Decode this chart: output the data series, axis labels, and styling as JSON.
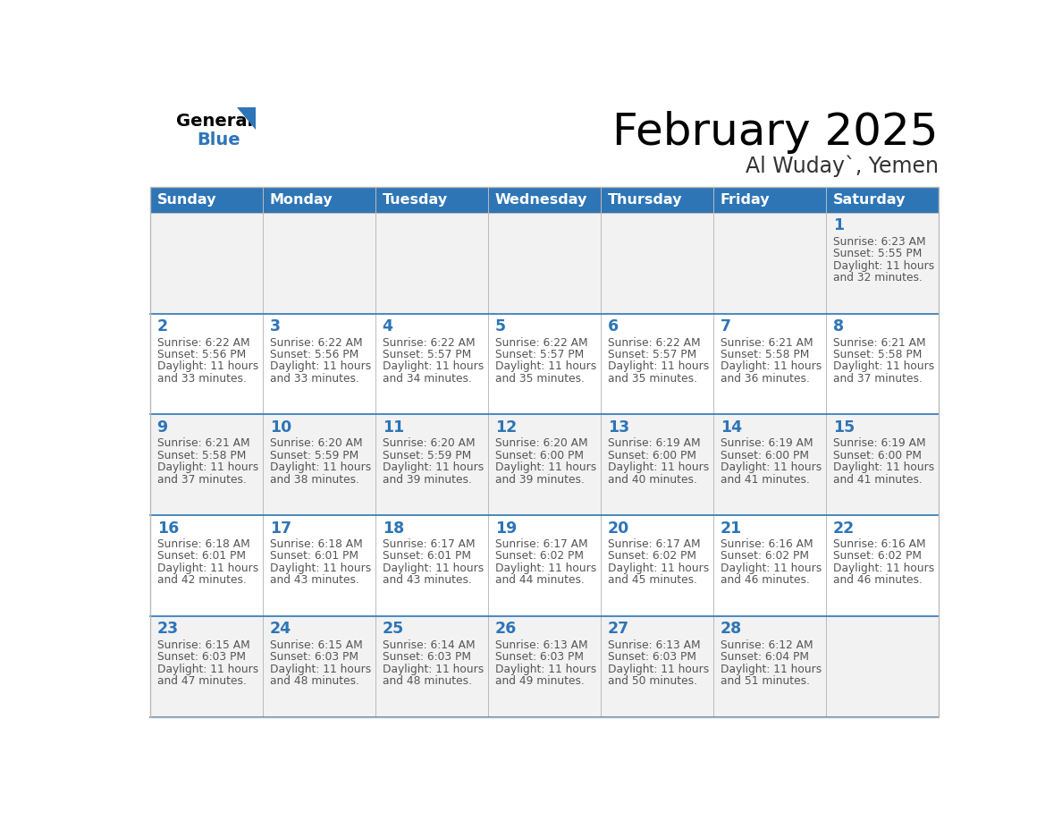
{
  "title": "February 2025",
  "subtitle": "Al Wuday`, Yemen",
  "days_of_week": [
    "Sunday",
    "Monday",
    "Tuesday",
    "Wednesday",
    "Thursday",
    "Friday",
    "Saturday"
  ],
  "header_bg": "#2E75B6",
  "header_text": "#FFFFFF",
  "day_number_color": "#2E75B6",
  "cell_bg_white": "#FFFFFF",
  "cell_bg_gray": "#F2F2F2",
  "text_color": "#555555",
  "line_color": "#2E75B6",
  "border_color": "#BBBBBB",
  "calendar_data": [
    [
      null,
      null,
      null,
      null,
      null,
      null,
      {
        "day": 1,
        "sunrise": "6:23 AM",
        "sunset": "5:55 PM",
        "daylight": "11 hours and 32 minutes."
      }
    ],
    [
      {
        "day": 2,
        "sunrise": "6:22 AM",
        "sunset": "5:56 PM",
        "daylight": "11 hours and 33 minutes."
      },
      {
        "day": 3,
        "sunrise": "6:22 AM",
        "sunset": "5:56 PM",
        "daylight": "11 hours and 33 minutes."
      },
      {
        "day": 4,
        "sunrise": "6:22 AM",
        "sunset": "5:57 PM",
        "daylight": "11 hours and 34 minutes."
      },
      {
        "day": 5,
        "sunrise": "6:22 AM",
        "sunset": "5:57 PM",
        "daylight": "11 hours and 35 minutes."
      },
      {
        "day": 6,
        "sunrise": "6:22 AM",
        "sunset": "5:57 PM",
        "daylight": "11 hours and 35 minutes."
      },
      {
        "day": 7,
        "sunrise": "6:21 AM",
        "sunset": "5:58 PM",
        "daylight": "11 hours and 36 minutes."
      },
      {
        "day": 8,
        "sunrise": "6:21 AM",
        "sunset": "5:58 PM",
        "daylight": "11 hours and 37 minutes."
      }
    ],
    [
      {
        "day": 9,
        "sunrise": "6:21 AM",
        "sunset": "5:58 PM",
        "daylight": "11 hours and 37 minutes."
      },
      {
        "day": 10,
        "sunrise": "6:20 AM",
        "sunset": "5:59 PM",
        "daylight": "11 hours and 38 minutes."
      },
      {
        "day": 11,
        "sunrise": "6:20 AM",
        "sunset": "5:59 PM",
        "daylight": "11 hours and 39 minutes."
      },
      {
        "day": 12,
        "sunrise": "6:20 AM",
        "sunset": "6:00 PM",
        "daylight": "11 hours and 39 minutes."
      },
      {
        "day": 13,
        "sunrise": "6:19 AM",
        "sunset": "6:00 PM",
        "daylight": "11 hours and 40 minutes."
      },
      {
        "day": 14,
        "sunrise": "6:19 AM",
        "sunset": "6:00 PM",
        "daylight": "11 hours and 41 minutes."
      },
      {
        "day": 15,
        "sunrise": "6:19 AM",
        "sunset": "6:00 PM",
        "daylight": "11 hours and 41 minutes."
      }
    ],
    [
      {
        "day": 16,
        "sunrise": "6:18 AM",
        "sunset": "6:01 PM",
        "daylight": "11 hours and 42 minutes."
      },
      {
        "day": 17,
        "sunrise": "6:18 AM",
        "sunset": "6:01 PM",
        "daylight": "11 hours and 43 minutes."
      },
      {
        "day": 18,
        "sunrise": "6:17 AM",
        "sunset": "6:01 PM",
        "daylight": "11 hours and 43 minutes."
      },
      {
        "day": 19,
        "sunrise": "6:17 AM",
        "sunset": "6:02 PM",
        "daylight": "11 hours and 44 minutes."
      },
      {
        "day": 20,
        "sunrise": "6:17 AM",
        "sunset": "6:02 PM",
        "daylight": "11 hours and 45 minutes."
      },
      {
        "day": 21,
        "sunrise": "6:16 AM",
        "sunset": "6:02 PM",
        "daylight": "11 hours and 46 minutes."
      },
      {
        "day": 22,
        "sunrise": "6:16 AM",
        "sunset": "6:02 PM",
        "daylight": "11 hours and 46 minutes."
      }
    ],
    [
      {
        "day": 23,
        "sunrise": "6:15 AM",
        "sunset": "6:03 PM",
        "daylight": "11 hours and 47 minutes."
      },
      {
        "day": 24,
        "sunrise": "6:15 AM",
        "sunset": "6:03 PM",
        "daylight": "11 hours and 48 minutes."
      },
      {
        "day": 25,
        "sunrise": "6:14 AM",
        "sunset": "6:03 PM",
        "daylight": "11 hours and 48 minutes."
      },
      {
        "day": 26,
        "sunrise": "6:13 AM",
        "sunset": "6:03 PM",
        "daylight": "11 hours and 49 minutes."
      },
      {
        "day": 27,
        "sunrise": "6:13 AM",
        "sunset": "6:03 PM",
        "daylight": "11 hours and 50 minutes."
      },
      {
        "day": 28,
        "sunrise": "6:12 AM",
        "sunset": "6:04 PM",
        "daylight": "11 hours and 51 minutes."
      },
      null
    ]
  ]
}
